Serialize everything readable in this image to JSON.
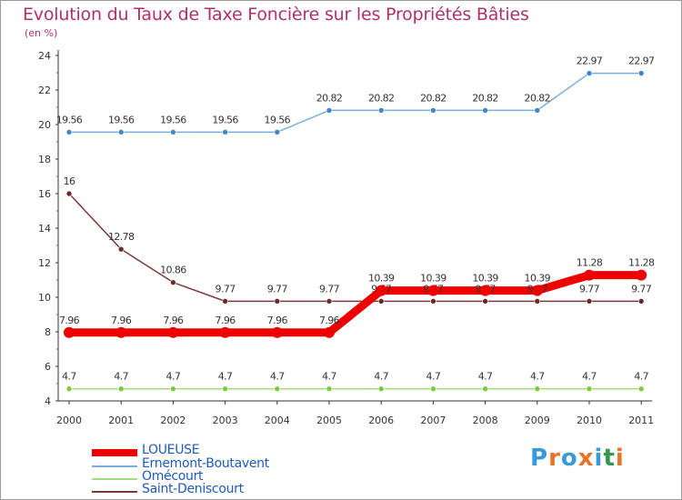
{
  "title": "Evolution du Taux de Taxe Foncière sur les Propriétés Bâties",
  "unit": "(en %)",
  "logo": {
    "text": "Proxiti",
    "letters": [
      "P",
      "r",
      "o",
      "x",
      "i",
      "t",
      "i"
    ],
    "colors": [
      "#3a9ad9",
      "#e8742a",
      "#3a9ad9",
      "#e8742a",
      "#3a9ad9",
      "#2e9a4a",
      "#e8742a"
    ]
  },
  "chart_data": {
    "type": "line",
    "title": "Evolution du Taux de Taxe Foncière sur les Propriétés Bâties",
    "ylabel": "(en %)",
    "xlabel": "",
    "ylim": [
      4,
      24
    ],
    "yticks": [
      4,
      6,
      8,
      10,
      12,
      14,
      16,
      18,
      20,
      22,
      24
    ],
    "x": [
      "2000",
      "2001",
      "2002",
      "2003",
      "2004",
      "2005",
      "2006",
      "2007",
      "2008",
      "2009",
      "2010",
      "2011"
    ],
    "grid": false,
    "legend_position": "bottom-left",
    "series": [
      {
        "name": "LOUEUSE",
        "color": "#ee0000",
        "width": 9,
        "labels": [
          "7.96",
          "7.96",
          "7.96",
          "7.96",
          "7.96",
          "7.96",
          "10.39",
          "10.39",
          "10.39",
          "10.39",
          "11.28",
          "11.28"
        ],
        "values": [
          7.96,
          7.96,
          7.96,
          7.96,
          7.96,
          7.96,
          10.39,
          10.39,
          10.39,
          10.39,
          11.28,
          11.28
        ]
      },
      {
        "name": "Ernemont-Boutavent",
        "color": "#7aaedc",
        "width": 1.5,
        "labels": [
          "19.56",
          "19.56",
          "19.56",
          "19.56",
          "19.56",
          "20.82",
          "20.82",
          "20.82",
          "20.82",
          "20.82",
          "22.97",
          "22.97"
        ],
        "values": [
          19.56,
          19.56,
          19.56,
          19.56,
          19.56,
          20.82,
          20.82,
          20.82,
          20.82,
          20.82,
          22.97,
          22.97
        ]
      },
      {
        "name": "Omécourt",
        "color": "#a6dd82",
        "width": 1.5,
        "labels": [
          "4.7",
          "4.7",
          "4.7",
          "4.7",
          "4.7",
          "4.7",
          "4.7",
          "4.7",
          "4.7",
          "4.7",
          "4.7",
          "4.7"
        ],
        "values": [
          4.7,
          4.7,
          4.7,
          4.7,
          4.7,
          4.7,
          4.7,
          4.7,
          4.7,
          4.7,
          4.7,
          4.7
        ]
      },
      {
        "name": "Saint-Deniscourt",
        "color": "#7a3a3a",
        "width": 1.5,
        "labels": [
          "16",
          "12.78",
          "10.86",
          "9.77",
          "9.77",
          "9.77",
          "9.77",
          "9.77",
          "9.77",
          "9.77",
          "9.77",
          "9.77"
        ],
        "values": [
          16,
          12.78,
          10.86,
          9.77,
          9.77,
          9.77,
          9.77,
          9.77,
          9.77,
          9.77,
          9.77,
          9.77
        ]
      }
    ]
  }
}
